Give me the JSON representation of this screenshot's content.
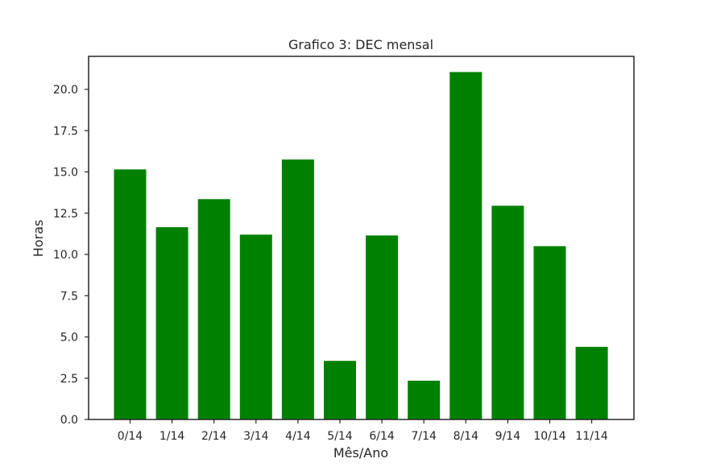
{
  "chart_data": {
    "type": "bar",
    "title": "Grafico 3: DEC mensal",
    "xlabel": "Mês/Ano",
    "ylabel": "Horas",
    "categories": [
      "0/14",
      "1/14",
      "2/14",
      "3/14",
      "4/14",
      "5/14",
      "6/14",
      "7/14",
      "8/14",
      "9/14",
      "10/14",
      "11/14"
    ],
    "values": [
      15.15,
      11.65,
      13.35,
      11.2,
      15.75,
      3.55,
      11.15,
      2.35,
      21.05,
      12.95,
      10.5,
      4.4
    ],
    "ylim": [
      0,
      22
    ],
    "yticks": [
      "0.0",
      "2.5",
      "5.0",
      "7.5",
      "10.0",
      "12.5",
      "15.0",
      "17.5",
      "20.0"
    ],
    "bar_color": "#008000",
    "grid": false,
    "legend": false
  }
}
